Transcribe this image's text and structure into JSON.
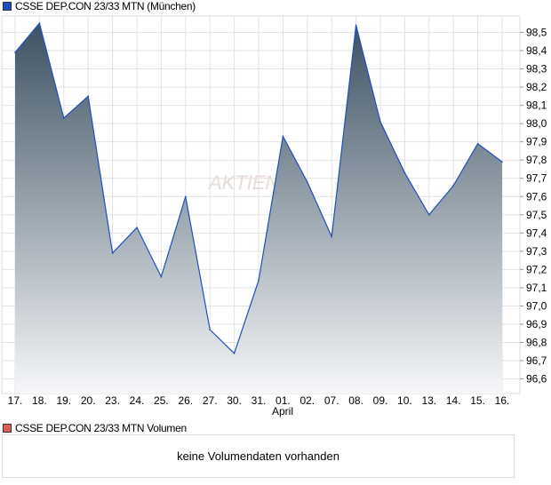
{
  "chart_data": {
    "type": "area",
    "title": "CSSE DEP.CON 23/33 MTN (München)",
    "series_color": "#1f4fbf",
    "categories": [
      "17.",
      "18.",
      "19.",
      "20.",
      "23.",
      "24.",
      "25.",
      "26.",
      "27.",
      "30.",
      "31.",
      "01.",
      "02.",
      "07.",
      "08.",
      "09.",
      "10.",
      "13.",
      "14.",
      "15.",
      "16."
    ],
    "month_label": "April",
    "values": [
      98.39,
      98.55,
      98.03,
      98.15,
      97.29,
      97.43,
      97.16,
      97.6,
      96.87,
      96.74,
      97.14,
      97.93,
      97.68,
      97.38,
      98.54,
      98.01,
      97.73,
      97.5,
      97.66,
      97.89,
      97.79
    ],
    "yticks": [
      "98,5",
      "98,4",
      "98,3",
      "98,2",
      "98,1",
      "98,0",
      "97,9",
      "97,8",
      "97,7",
      "97,6",
      "97,5",
      "97,4",
      "97,3",
      "97,2",
      "97,1",
      "97,0",
      "96,9",
      "96,8",
      "96,7",
      "96,6"
    ],
    "ylim": [
      96.52,
      98.59
    ],
    "grid": true
  },
  "volume": {
    "title": "CSSE DEP.CON 23/33 MTN Volumen",
    "color": "#d9605a",
    "empty_text": "keine Volumendaten vorhanden"
  }
}
